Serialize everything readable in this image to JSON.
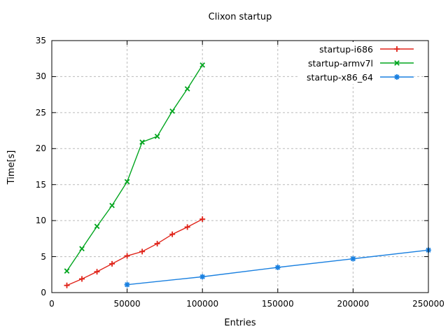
{
  "chart_data": {
    "type": "line",
    "title": "Clixon startup",
    "xlabel": "Entries",
    "ylabel": "Time[s]",
    "xlim": [
      0,
      250000
    ],
    "ylim": [
      0,
      35
    ],
    "xticks": [
      0,
      50000,
      100000,
      150000,
      200000,
      250000
    ],
    "yticks": [
      0,
      5,
      10,
      15,
      20,
      25,
      30,
      35
    ],
    "grid": true,
    "legend_position": "top-right-inside",
    "colors": {
      "background": "#ffffff",
      "grid": "#bbbbbb",
      "border": "#000000",
      "text": "#000000"
    },
    "series": [
      {
        "name": "startup-i686",
        "color": "#e0241a",
        "marker": "plus",
        "x": [
          10000,
          20000,
          30000,
          40000,
          50000,
          60000,
          70000,
          80000,
          90000,
          100000
        ],
        "y": [
          1.0,
          1.9,
          2.9,
          4.0,
          5.1,
          5.7,
          6.8,
          8.1,
          9.1,
          10.2
        ]
      },
      {
        "name": "startup-armv7l",
        "color": "#00a51e",
        "marker": "cross",
        "x": [
          10000,
          20000,
          30000,
          40000,
          50000,
          60000,
          70000,
          80000,
          90000,
          100000
        ],
        "y": [
          3.0,
          6.1,
          9.2,
          12.1,
          15.4,
          20.9,
          21.7,
          25.2,
          28.3,
          31.6
        ]
      },
      {
        "name": "startup-x86_64",
        "color": "#1a80e0",
        "marker": "asterisk",
        "x": [
          50000,
          100000,
          150000,
          200000,
          250000
        ],
        "y": [
          1.1,
          2.2,
          3.5,
          4.7,
          5.9
        ]
      }
    ]
  }
}
